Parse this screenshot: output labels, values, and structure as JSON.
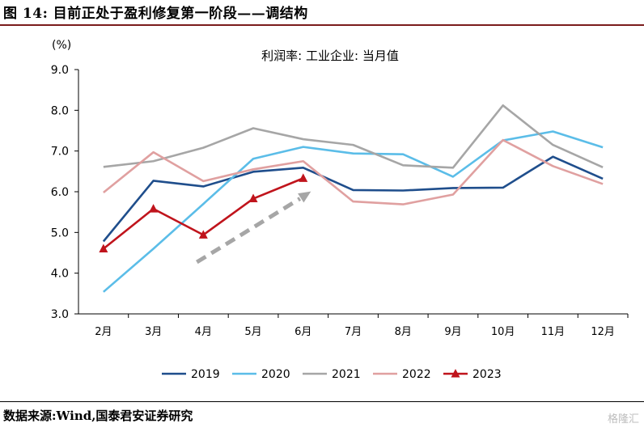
{
  "header": {
    "title": "图 14:  目前正处于盈利修复第一阶段——调结构"
  },
  "footer": {
    "source": "数据来源:Wind,国泰君安证券研究",
    "watermark": "格隆汇"
  },
  "chart_data": {
    "type": "line",
    "title": "利润率: 工业企业: 当月值",
    "ylabel": "(%)",
    "ylim": [
      3.0,
      9.0
    ],
    "yticks": [
      "3.0",
      "4.0",
      "5.0",
      "6.0",
      "7.0",
      "8.0",
      "9.0"
    ],
    "categories": [
      "2月",
      "3月",
      "4月",
      "5月",
      "6月",
      "7月",
      "8月",
      "9月",
      "10月",
      "11月",
      "12月"
    ],
    "series": [
      {
        "name": "2019",
        "color": "#1f4e8c",
        "values": [
          4.78,
          6.27,
          6.13,
          6.49,
          6.59,
          6.04,
          6.03,
          6.09,
          6.1,
          6.86,
          6.32
        ]
      },
      {
        "name": "2020",
        "color": "#5bbde8",
        "values": [
          3.54,
          4.6,
          5.7,
          6.81,
          7.1,
          6.94,
          6.92,
          6.37,
          7.26,
          7.48,
          7.09
        ]
      },
      {
        "name": "2021",
        "color": "#a6a6a6",
        "values": [
          6.61,
          6.75,
          7.08,
          7.56,
          7.29,
          7.15,
          6.65,
          6.59,
          8.12,
          7.15,
          6.6
        ]
      },
      {
        "name": "2022",
        "color": "#e0a0a0",
        "values": [
          5.98,
          6.97,
          6.26,
          6.55,
          6.75,
          5.76,
          5.69,
          5.93,
          7.27,
          6.63,
          6.19
        ]
      },
      {
        "name": "2023",
        "color": "#c0141c",
        "marker": "triangle",
        "values": [
          4.6,
          5.58,
          4.94,
          5.83,
          6.33,
          null,
          null,
          null,
          null,
          null,
          null
        ]
      }
    ],
    "trend": {
      "color": "#a6a6a6",
      "from": {
        "x": "4月",
        "y": 4.35
      },
      "to": {
        "x": "6月",
        "y": 5.95
      }
    },
    "grid": false,
    "legend": "bottom"
  }
}
